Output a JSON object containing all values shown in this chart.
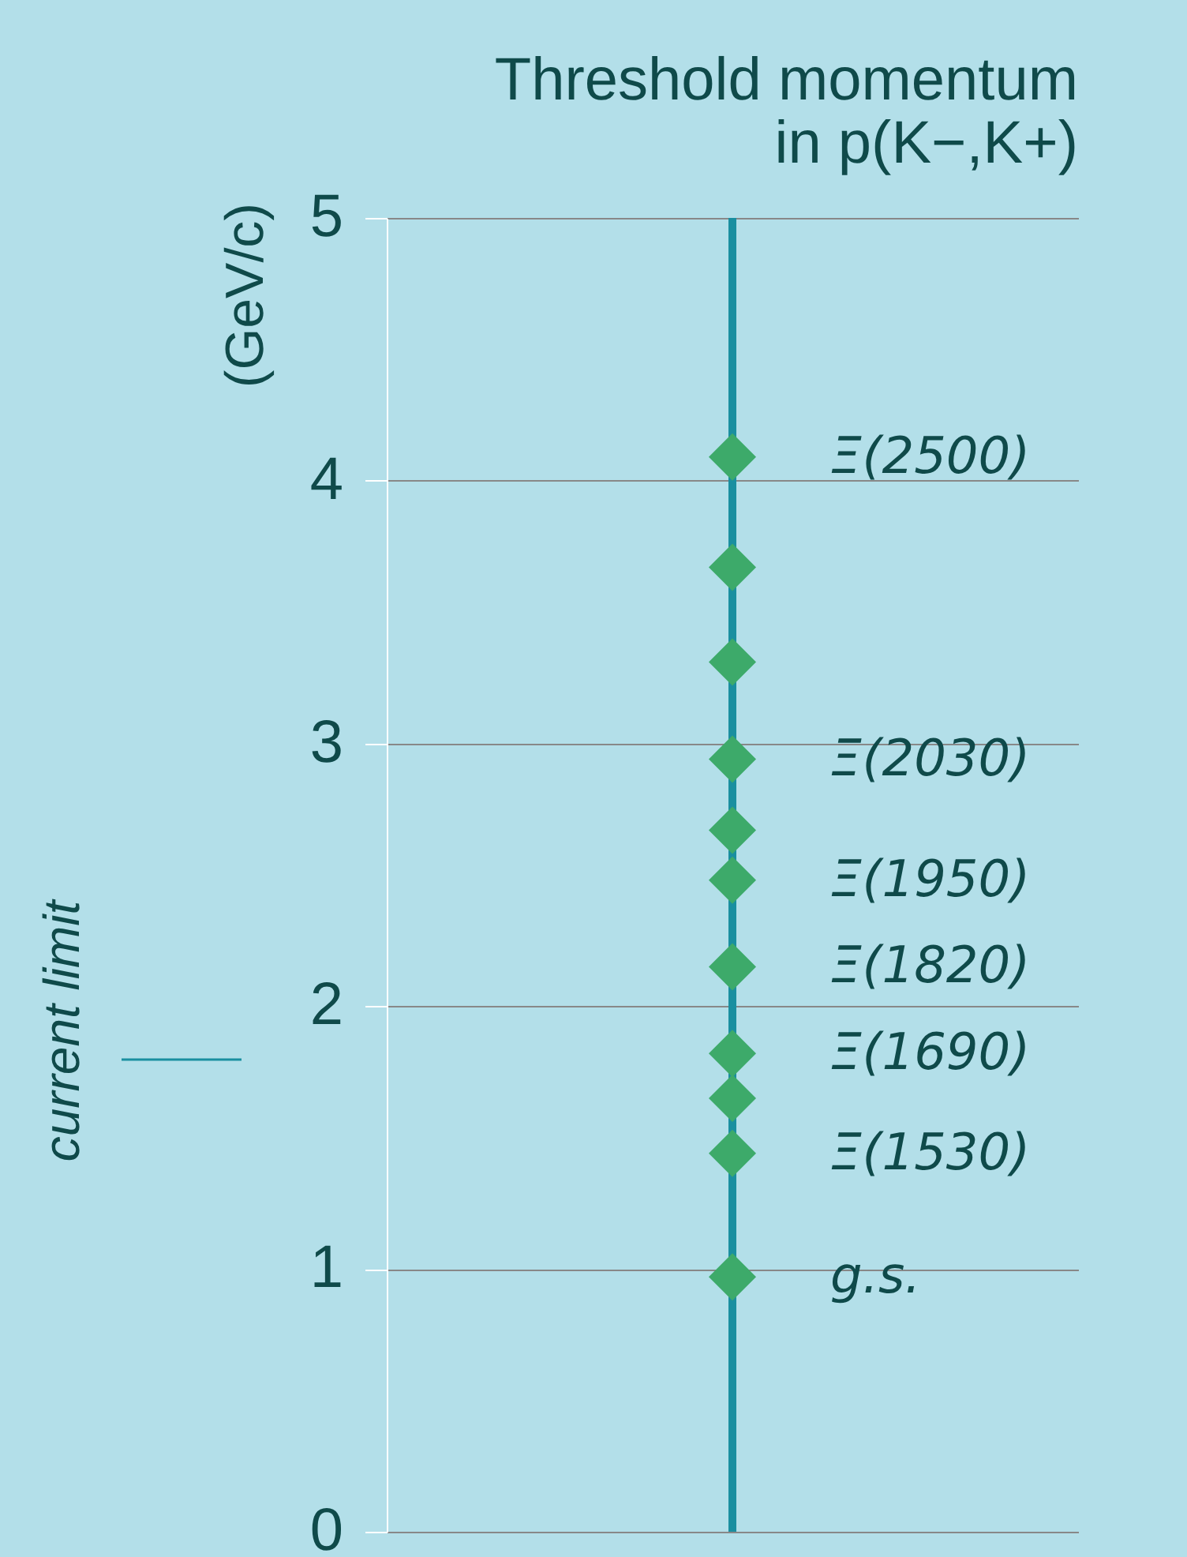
{
  "chart_data": {
    "type": "scatter",
    "title": "Threshold momentum\nin p(K−,K+)",
    "ylabel": "(GeV/c)",
    "categories": [
      null
    ],
    "series": [
      {
        "name": "Ξ(2500)",
        "color": "#3daa6a",
        "values": [
          4.09
        ]
      },
      {
        "color": "#3daa6a",
        "values": [
          3.67
        ]
      },
      {
        "color": "#3daa6a",
        "values": [
          3.31
        ]
      },
      {
        "name": "Ξ(2030)",
        "color": "#3daa6a",
        "values": [
          2.94
        ]
      },
      {
        "color": "#3daa6a",
        "values": [
          2.67
        ]
      },
      {
        "name": "Ξ(1950)",
        "color": "#3daa6a",
        "values": [
          2.48
        ]
      },
      {
        "name": "Ξ(1820)",
        "color": "#3daa6a",
        "values": [
          2.15
        ]
      },
      {
        "name": "Ξ(1690)",
        "color": "#3daa6a",
        "values": [
          1.82
        ]
      },
      {
        "color": "#3daa6a",
        "values": [
          1.65
        ]
      },
      {
        "name": "Ξ(1530)",
        "color": "#3daa6a",
        "values": [
          1.44
        ]
      },
      {
        "name": "g.s.",
        "color": "#3daa6a",
        "values": [
          0.97
        ]
      }
    ],
    "marker": "diamond",
    "ylim": [
      0,
      5
    ],
    "yticks": [
      0,
      1,
      2,
      3,
      4,
      5
    ],
    "grid": "y",
    "tick_labels": "y",
    "annotations": [
      "current limit"
    ]
  }
}
